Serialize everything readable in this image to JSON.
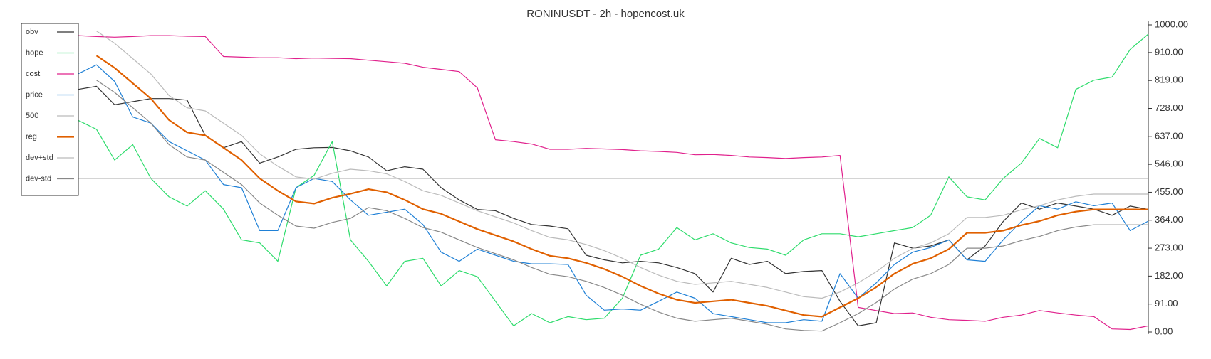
{
  "chart_data": {
    "type": "line",
    "title": "RONINUSDT - 2h - hopencost.uk",
    "ylim": [
      0,
      1000
    ],
    "yticks": [
      {
        "value": 0,
        "label": "0.00"
      },
      {
        "value": 91,
        "label": "91.00"
      },
      {
        "value": 182,
        "label": "182.00"
      },
      {
        "value": 273,
        "label": "273.00"
      },
      {
        "value": 364,
        "label": "364.00"
      },
      {
        "value": 455,
        "label": "455.00"
      },
      {
        "value": 546,
        "label": "546.00"
      },
      {
        "value": 637,
        "label": "637.00"
      },
      {
        "value": 728,
        "label": "728.00"
      },
      {
        "value": 819,
        "label": "819.00"
      },
      {
        "value": 910,
        "label": "910.00"
      },
      {
        "value": 1000,
        "label": "1000.00"
      }
    ],
    "legend": "upper left",
    "series": [
      {
        "name": "obv",
        "color": "#333333",
        "width": 1.2,
        "values": [
          790,
          800,
          740,
          750,
          760,
          760,
          755,
          640,
          600,
          620,
          550,
          570,
          595,
          600,
          601,
          590,
          570,
          525,
          538,
          530,
          470,
          430,
          399,
          395,
          370,
          350,
          345,
          336,
          250,
          235,
          225,
          230,
          225,
          210,
          190,
          130,
          240,
          220,
          230,
          190,
          197,
          200,
          100,
          20,
          30,
          290,
          273,
          280,
          300,
          235,
          280,
          360,
          420,
          400,
          420,
          410,
          400,
          380,
          410,
          399
        ]
      },
      {
        "name": "hope",
        "color": "#2edc6c",
        "width": 1.2,
        "values": [
          689,
          660,
          560,
          610,
          500,
          440,
          410,
          460,
          400,
          300,
          290,
          230,
          470,
          510,
          620,
          300,
          230,
          150,
          230,
          240,
          150,
          200,
          180,
          100,
          20,
          60,
          30,
          50,
          40,
          45,
          110,
          250,
          270,
          340,
          300,
          320,
          290,
          275,
          270,
          250,
          300,
          320,
          320,
          310,
          320,
          330,
          340,
          380,
          505,
          440,
          430,
          500,
          550,
          630,
          600,
          790,
          820,
          830,
          920,
          970
        ]
      },
      {
        "name": "cost",
        "color": "#e0208c",
        "width": 1.2,
        "values": [
          965,
          962,
          960,
          962,
          965,
          965,
          963,
          962,
          897,
          895,
          893,
          893,
          890,
          892,
          891,
          890,
          885,
          880,
          875,
          862,
          855,
          848,
          795,
          626,
          620,
          612,
          595,
          595,
          598,
          596,
          594,
          590,
          588,
          585,
          577,
          578,
          575,
          570,
          568,
          565,
          568,
          570,
          575,
          80,
          70,
          60,
          62,
          48,
          40,
          38,
          35,
          48,
          55,
          70,
          62,
          55,
          50,
          10,
          8,
          20
        ]
      },
      {
        "name": "price",
        "color": "#1f80d6",
        "width": 1.2,
        "values": [
          841,
          870,
          816,
          700,
          680,
          620,
          590,
          560,
          480,
          470,
          330,
          330,
          470,
          500,
          490,
          430,
          380,
          390,
          400,
          350,
          260,
          230,
          270,
          250,
          230,
          222,
          222,
          220,
          120,
          71,
          75,
          71,
          100,
          130,
          110,
          60,
          50,
          40,
          30,
          30,
          40,
          35,
          190,
          110,
          160,
          220,
          260,
          275,
          300,
          235,
          230,
          300,
          360,
          411,
          400,
          424,
          411,
          420,
          330,
          361
        ]
      },
      {
        "name": "500",
        "color": "#bbbbbb",
        "width": 1.2,
        "values": [
          500,
          500,
          500,
          500,
          500,
          500,
          500,
          500,
          500,
          500,
          500,
          500,
          500,
          500,
          500,
          500,
          500,
          500,
          500,
          500,
          500,
          500,
          500,
          500,
          500,
          500,
          500,
          500,
          500,
          500,
          500,
          500,
          500,
          500,
          500,
          500,
          500,
          500,
          500,
          500,
          500,
          500,
          500,
          500,
          500,
          500,
          500,
          500,
          500,
          500,
          500,
          500,
          500,
          500,
          500,
          500,
          500,
          500,
          500,
          500
        ]
      },
      {
        "name": "reg",
        "color": "#e06000",
        "width": 2.2,
        "values": [
          null,
          900,
          860,
          810,
          760,
          690,
          650,
          640,
          600,
          560,
          500,
          460,
          425,
          418,
          437,
          450,
          465,
          455,
          430,
          400,
          385,
          360,
          335,
          315,
          295,
          270,
          248,
          240,
          225,
          205,
          180,
          150,
          125,
          105,
          95,
          100,
          105,
          95,
          85,
          70,
          55,
          50,
          80,
          110,
          146,
          190,
          222,
          240,
          270,
          323,
          323,
          330,
          348,
          361,
          380,
          392,
          399,
          399,
          399,
          399
        ]
      },
      {
        "name": "dev+std",
        "color": "#bbbbbb",
        "width": 1.2,
        "values": [
          null,
          980,
          940,
          890,
          840,
          770,
          730,
          720,
          680,
          640,
          580,
          540,
          505,
          498,
          517,
          530,
          525,
          515,
          490,
          460,
          445,
          420,
          395,
          375,
          355,
          330,
          308,
          300,
          285,
          265,
          240,
          210,
          185,
          165,
          155,
          160,
          165,
          155,
          145,
          130,
          115,
          110,
          130,
          160,
          196,
          240,
          272,
          290,
          320,
          373,
          373,
          380,
          398,
          411,
          430,
          442,
          449,
          449,
          449,
          449
        ]
      },
      {
        "name": "dev-std",
        "color": "#888888",
        "width": 1.2,
        "values": [
          null,
          820,
          780,
          730,
          680,
          610,
          570,
          560,
          520,
          480,
          420,
          380,
          345,
          338,
          357,
          370,
          405,
          395,
          370,
          340,
          325,
          300,
          275,
          255,
          235,
          210,
          188,
          180,
          165,
          145,
          120,
          90,
          65,
          45,
          35,
          40,
          45,
          35,
          25,
          10,
          5,
          3,
          30,
          60,
          96,
          140,
          172,
          190,
          220,
          273,
          273,
          280,
          298,
          311,
          330,
          342,
          349,
          349,
          349,
          349
        ]
      }
    ]
  }
}
